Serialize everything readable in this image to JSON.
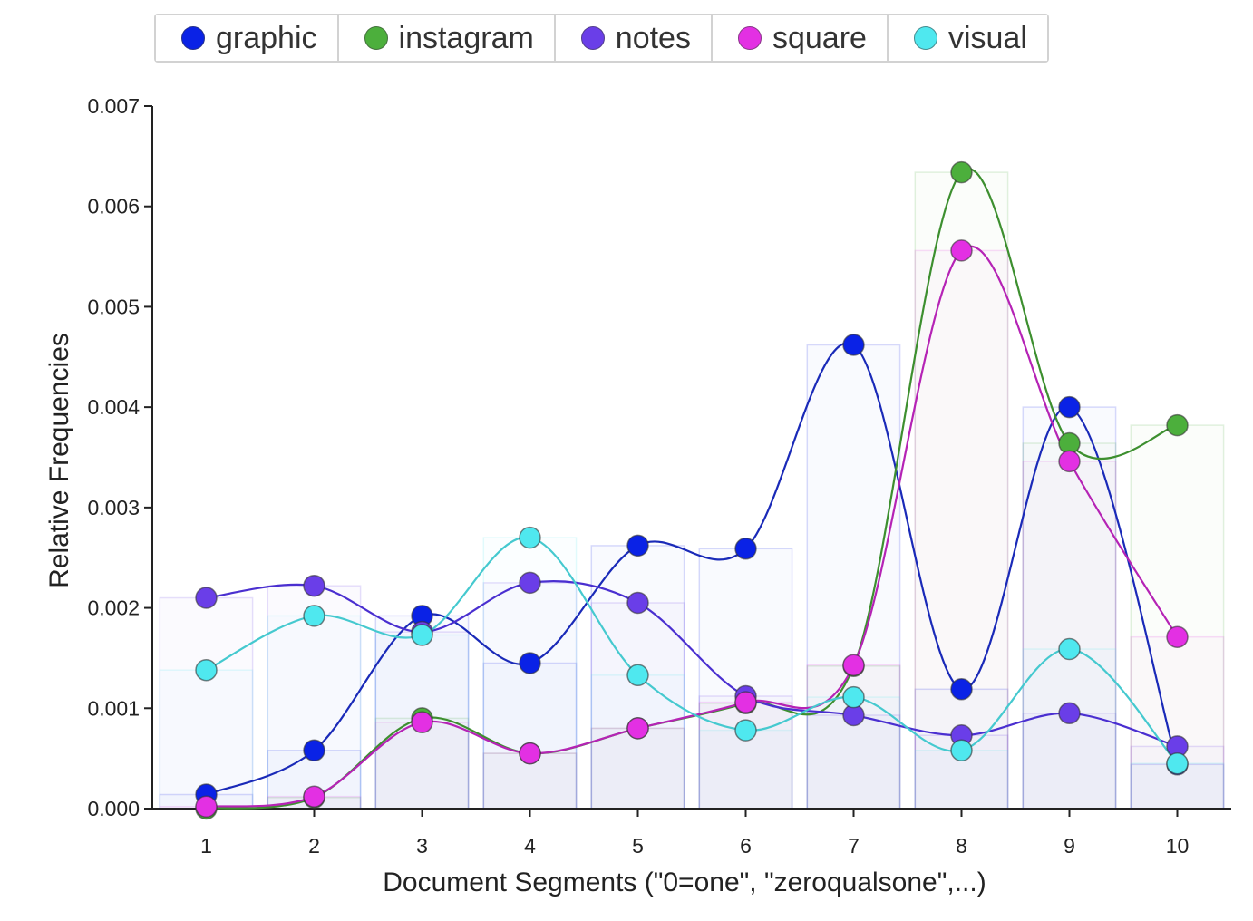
{
  "chart_data": {
    "type": "line",
    "title": "",
    "xlabel": "Document Segments (\"0=one\", \"zeroqualsone\",...)",
    "ylabel": "Relative Frequencies",
    "x": [
      1,
      2,
      3,
      4,
      5,
      6,
      7,
      8,
      9,
      10
    ],
    "xlim": [
      0.5,
      10.5
    ],
    "ylim": [
      0,
      0.007
    ],
    "y_ticks": [
      "0.000",
      "0.001",
      "0.002",
      "0.003",
      "0.004",
      "0.005",
      "0.006",
      "0.007"
    ],
    "x_ticks": [
      "1",
      "2",
      "3",
      "4",
      "5",
      "6",
      "7",
      "8",
      "9",
      "10"
    ],
    "grid": false,
    "legend": "top",
    "smoothed": true,
    "background_bars": true,
    "series": [
      {
        "name": "graphic",
        "color": "#0a22e6",
        "values": [
          0.00014,
          0.00058,
          0.00192,
          0.00145,
          0.00262,
          0.00259,
          0.00462,
          0.00119,
          0.004,
          0.00044
        ]
      },
      {
        "name": "instagram",
        "color": "#4caf3c",
        "values": [
          0.0,
          0.00011,
          0.0009,
          0.00055,
          0.0008,
          0.00105,
          0.00142,
          0.00634,
          0.00364,
          0.00382
        ]
      },
      {
        "name": "notes",
        "color": "#6a3ee8",
        "values": [
          0.0021,
          0.00222,
          0.00176,
          0.00225,
          0.00205,
          0.00112,
          0.00093,
          0.00073,
          0.00095,
          0.00062
        ]
      },
      {
        "name": "square",
        "color": "#e330e3",
        "values": [
          2e-05,
          0.00012,
          0.00086,
          0.00055,
          0.0008,
          0.00106,
          0.00143,
          0.00556,
          0.00346,
          0.00171
        ]
      },
      {
        "name": "visual",
        "color": "#4fe8ef",
        "values": [
          0.00138,
          0.00192,
          0.00173,
          0.0027,
          0.00133,
          0.00078,
          0.00111,
          0.00058,
          0.00159,
          0.00045
        ]
      }
    ]
  }
}
